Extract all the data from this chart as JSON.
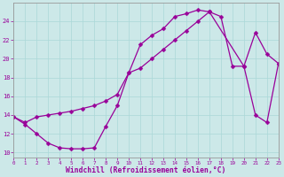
{
  "bg_color": "#cce8e8",
  "line_color": "#990099",
  "markersize": 2.5,
  "linewidth": 0.9,
  "xlim": [
    0,
    23
  ],
  "ylim": [
    9.5,
    26.0
  ],
  "xticks": [
    0,
    1,
    2,
    3,
    4,
    5,
    6,
    7,
    8,
    9,
    10,
    11,
    12,
    13,
    14,
    15,
    16,
    17,
    18,
    19,
    20,
    21,
    22,
    23
  ],
  "yticks": [
    10,
    12,
    14,
    16,
    18,
    20,
    22,
    24
  ],
  "xlabel": "Windchill (Refroidissement éolien,°C)",
  "grid_color": "#aad8d8",
  "curve1_x": [
    0,
    1,
    2,
    3,
    4,
    5,
    6,
    7,
    8,
    9,
    10,
    11,
    12,
    13,
    14,
    15,
    16,
    17
  ],
  "curve1_y": [
    13.8,
    13.0,
    12.0,
    11.0,
    10.5,
    10.4,
    10.4,
    10.5,
    12.8,
    15.0,
    18.5,
    21.5,
    22.5,
    23.2,
    24.5,
    24.8,
    25.2,
    25.0
  ],
  "curve2_x": [
    0,
    1,
    2,
    3,
    4,
    5,
    6,
    7,
    8,
    9,
    10,
    11,
    12,
    13,
    14,
    15,
    16,
    17,
    18,
    19,
    20,
    21,
    22,
    23
  ],
  "curve2_y": [
    13.8,
    13.2,
    13.8,
    14.0,
    14.2,
    14.4,
    14.7,
    15.0,
    15.5,
    16.2,
    18.5,
    19.0,
    20.0,
    21.0,
    22.0,
    23.0,
    24.0,
    25.0,
    24.5,
    19.2,
    19.2,
    22.8,
    20.5,
    19.5
  ],
  "curve3_x": [
    17,
    20,
    21,
    22,
    23
  ],
  "curve3_y": [
    25.0,
    19.2,
    14.0,
    13.2,
    19.5
  ]
}
